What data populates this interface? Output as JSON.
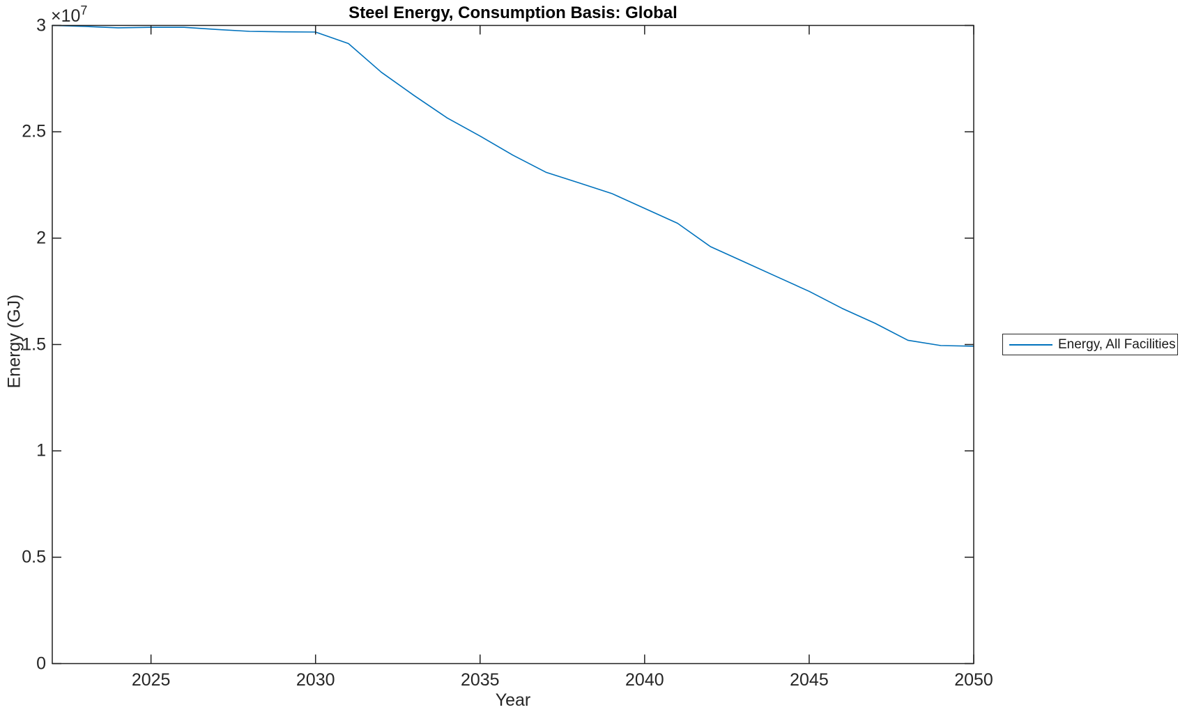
{
  "chart_data": {
    "type": "line",
    "title": "Steel Energy, Consumption Basis: Global",
    "xlabel": "Year",
    "ylabel": "Energy (GJ)",
    "y_multiplier": {
      "base": "×10",
      "exponent": "7"
    },
    "xlim": [
      2022,
      2050
    ],
    "ylim": [
      0,
      30000000
    ],
    "grid": false,
    "box": true,
    "x_ticks": [
      {
        "value": 2025,
        "label": "2025"
      },
      {
        "value": 2030,
        "label": "2030"
      },
      {
        "value": 2035,
        "label": "2035"
      },
      {
        "value": 2040,
        "label": "2040"
      },
      {
        "value": 2045,
        "label": "2045"
      },
      {
        "value": 2050,
        "label": "2050"
      }
    ],
    "y_ticks": [
      {
        "value": 0,
        "label": "0"
      },
      {
        "value": 5000000,
        "label": "0.5"
      },
      {
        "value": 10000000,
        "label": "1"
      },
      {
        "value": 15000000,
        "label": "1.5"
      },
      {
        "value": 20000000,
        "label": "2"
      },
      {
        "value": 25000000,
        "label": "2.5"
      },
      {
        "value": 30000000,
        "label": "3"
      }
    ],
    "legend": {
      "position": "right-outside",
      "entries": [
        {
          "label": "Energy, All Facilities",
          "color": "#0072BD"
        }
      ]
    },
    "series": [
      {
        "name": "Energy, All Facilities",
        "color": "#0072BD",
        "x": [
          2022,
          2023,
          2024,
          2025,
          2026,
          2027,
          2028,
          2029,
          2030,
          2031,
          2032,
          2033,
          2034,
          2035,
          2036,
          2037,
          2038,
          2039,
          2040,
          2041,
          2042,
          2043,
          2044,
          2045,
          2046,
          2047,
          2048,
          2049,
          2050
        ],
        "values": [
          30000000,
          29950000,
          29890000,
          29910000,
          29910000,
          29810000,
          29720000,
          29700000,
          29690000,
          29150000,
          27800000,
          26700000,
          25650000,
          24800000,
          23900000,
          23100000,
          22600000,
          22100000,
          21400000,
          20700000,
          19600000,
          18900000,
          18200000,
          17500000,
          16700000,
          16000000,
          15200000,
          14950000,
          14920000
        ]
      }
    ]
  },
  "colors": {
    "line": "#0072BD",
    "axis": "#1f1f1f",
    "tick_text": "#262626",
    "title_text": "#000000",
    "legend_border": "#262626",
    "background": "#ffffff"
  }
}
